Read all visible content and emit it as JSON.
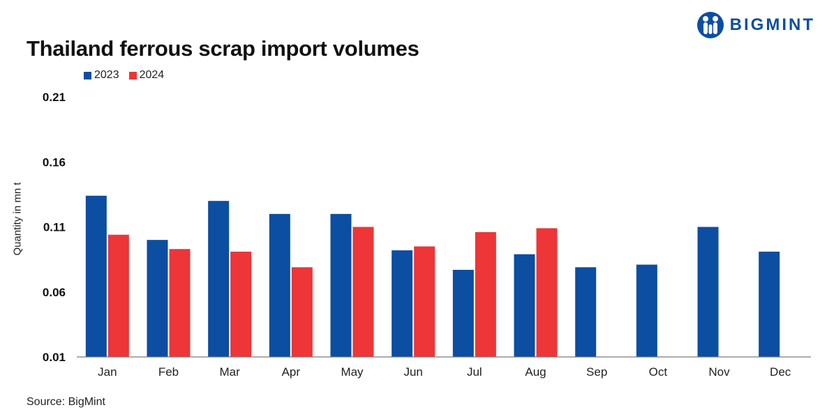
{
  "title": "Thailand ferrous scrap import volumes",
  "source": "Source: BigMint",
  "logo": {
    "text": "BIGMINT",
    "icon": "bigmint-people-logo-icon"
  },
  "colors": {
    "series_2023": "#0b4ea2",
    "series_2024": "#ee3537",
    "axis": "#7a7a7a"
  },
  "chart_data": {
    "type": "bar",
    "title": "Thailand ferrous scrap import volumes",
    "xlabel": "",
    "ylabel": "Quantity in mn t",
    "ylim": [
      0.01,
      0.21
    ],
    "yticks": [
      "0.21",
      "0.16",
      "0.11",
      "0.06",
      "0.01"
    ],
    "categories": [
      "Jan",
      "Feb",
      "Mar",
      "Apr",
      "May",
      "Jun",
      "Jul",
      "Aug",
      "Sep",
      "Oct",
      "Nov",
      "Dec"
    ],
    "legend_position": "top-left",
    "grid": false,
    "series": [
      {
        "name": "2023",
        "color": "#0b4ea2",
        "values": [
          0.134,
          0.1,
          0.13,
          0.12,
          0.12,
          0.092,
          0.077,
          0.089,
          0.079,
          0.081,
          0.11,
          0.091
        ]
      },
      {
        "name": "2024",
        "color": "#ee3537",
        "values": [
          0.104,
          0.093,
          0.091,
          0.079,
          0.11,
          0.095,
          0.106,
          0.109,
          null,
          null,
          null,
          null
        ]
      }
    ]
  }
}
